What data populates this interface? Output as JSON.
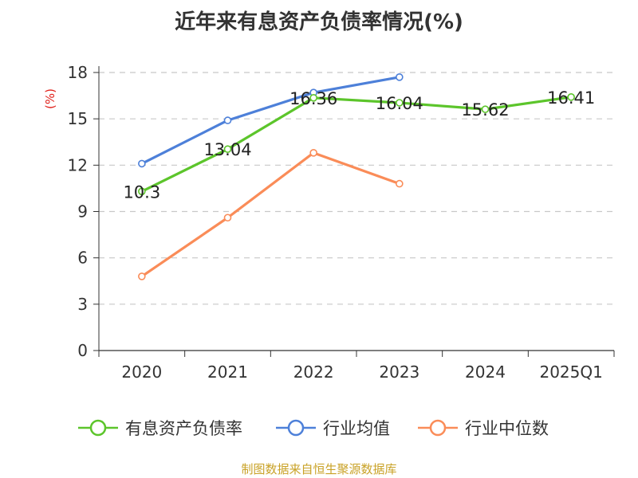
{
  "chart_data": {
    "type": "line",
    "title": "近年来有息资产负债率情况(%)",
    "ylabel": "(%)",
    "xlabel": "",
    "categories": [
      "2020",
      "2021",
      "2022",
      "2023",
      "2024",
      "2025Q1"
    ],
    "ylim": [
      0,
      18
    ],
    "yticks": [
      0,
      3,
      6,
      9,
      12,
      15,
      18
    ],
    "grid": true,
    "legend_position": "bottom",
    "series": [
      {
        "name": "有息资产负债率",
        "color": "#5cc52b",
        "show_labels": true,
        "values": [
          10.3,
          13.04,
          16.36,
          16.04,
          15.62,
          16.41
        ],
        "labels": [
          "10.3",
          "13.04",
          "16.36",
          "16.04",
          "15.62",
          "16.41"
        ]
      },
      {
        "name": "行业均值",
        "color": "#4d80d9",
        "show_labels": false,
        "values": [
          12.1,
          14.9,
          16.7,
          17.7,
          null,
          null
        ]
      },
      {
        "name": "行业中位数",
        "color": "#fa8c58",
        "show_labels": false,
        "values": [
          4.8,
          8.6,
          12.8,
          10.8,
          null,
          null
        ]
      }
    ],
    "source": "制图数据来自恒生聚源数据库"
  }
}
